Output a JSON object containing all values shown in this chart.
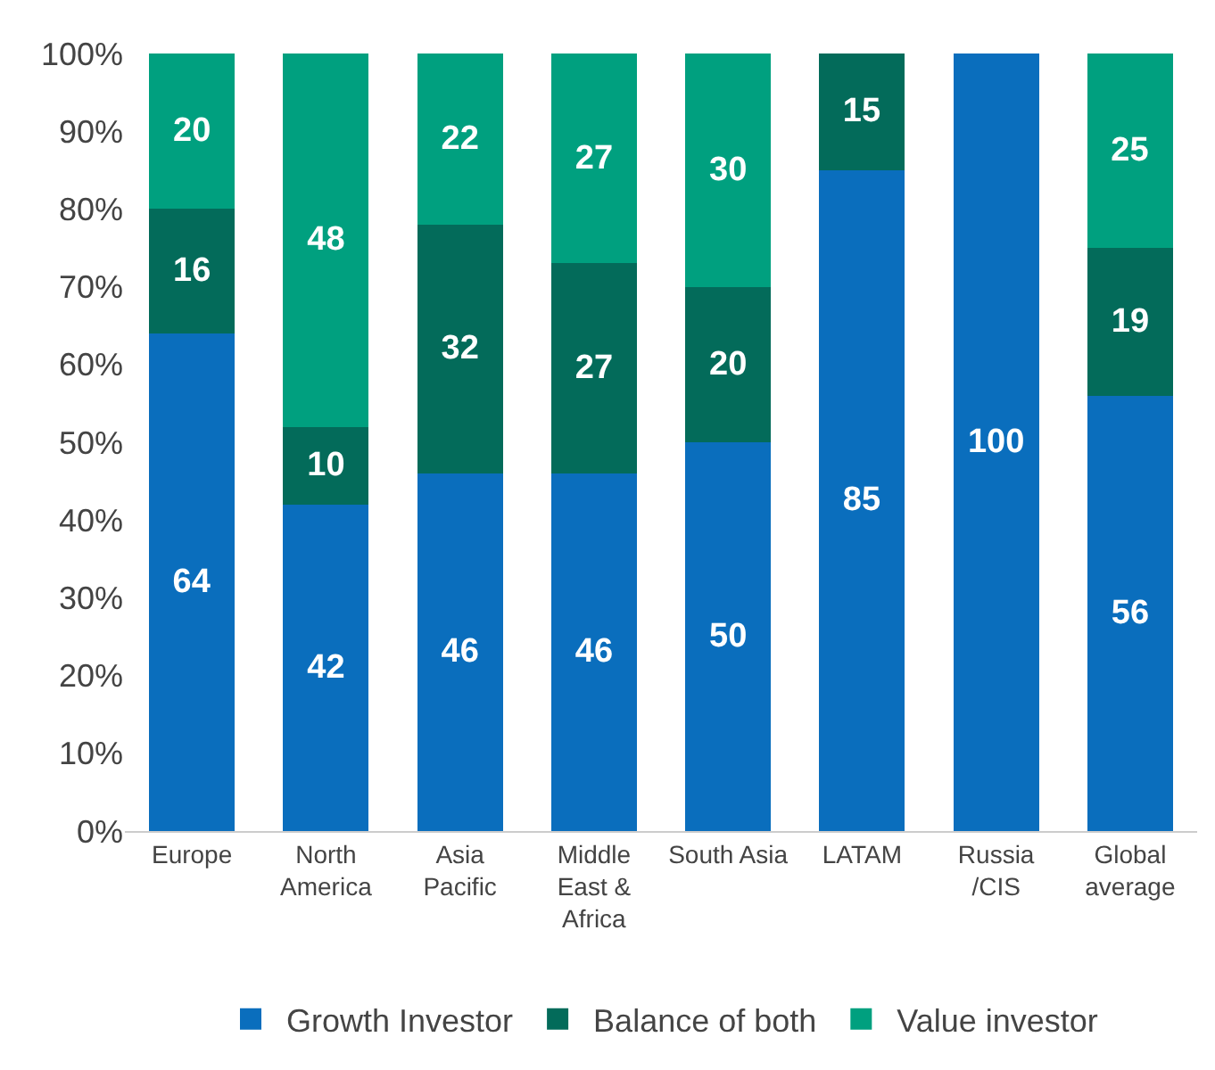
{
  "chart_data": {
    "type": "bar",
    "stacked": true,
    "categories": [
      "Europe",
      "North\nAmerica",
      "Asia\nPacific",
      "Middle\nEast &\nAfrica",
      "South Asia",
      "LATAM",
      "Russia\n/CIS",
      "Global\naverage"
    ],
    "series": [
      {
        "name": "Growth Investor",
        "color": "#0a6ebd",
        "values": [
          64,
          42,
          46,
          46,
          50,
          85,
          100,
          56
        ]
      },
      {
        "name": "Balance of both",
        "color": "#036b5a",
        "values": [
          16,
          10,
          32,
          27,
          20,
          15,
          null,
          19
        ]
      },
      {
        "name": "Value investor",
        "color": "#00a07f",
        "values": [
          20,
          48,
          22,
          27,
          30,
          null,
          null,
          25
        ]
      }
    ],
    "ylim": [
      0,
      100
    ],
    "yticks": [
      {
        "value": 0,
        "label": "0%"
      },
      {
        "value": 10,
        "label": "10%"
      },
      {
        "value": 20,
        "label": "20%"
      },
      {
        "value": 30,
        "label": "30%"
      },
      {
        "value": 40,
        "label": "40%"
      },
      {
        "value": 50,
        "label": "50%"
      },
      {
        "value": 60,
        "label": "60%"
      },
      {
        "value": 70,
        "label": "70%"
      },
      {
        "value": 80,
        "label": "80%"
      },
      {
        "value": 90,
        "label": "90%"
      },
      {
        "value": 100,
        "label": "100%"
      }
    ],
    "data_labels": true,
    "legend": "bottom"
  }
}
